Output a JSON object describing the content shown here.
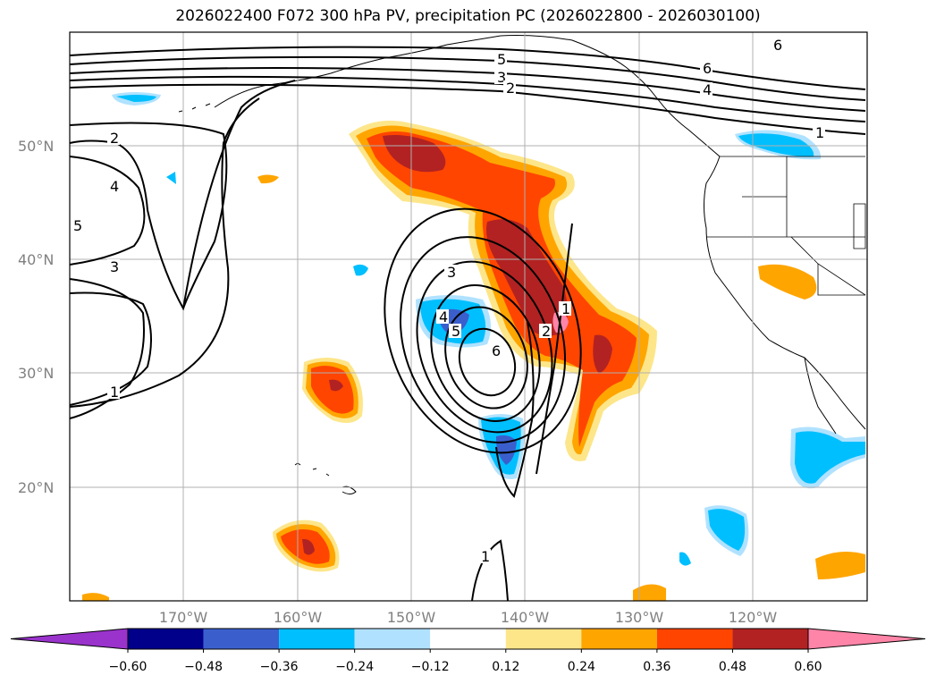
{
  "title": "2026022400 F072 300 hPa PV, precipitation PC (2026022800 - 2026030100)",
  "map": {
    "lat_labels": [
      "50°N",
      "40°N",
      "30°N",
      "20°N"
    ],
    "lon_labels": [
      "170°W",
      "160°W",
      "150°W",
      "140°W",
      "130°W",
      "120°W"
    ],
    "contour_labels": [
      "1",
      "2",
      "3",
      "4",
      "5",
      "6"
    ]
  },
  "colorbar": {
    "ticks": [
      "−0.60",
      "−0.48",
      "−0.36",
      "−0.24",
      "−0.12",
      "0.12",
      "0.24",
      "0.36",
      "0.48",
      "0.60"
    ],
    "colors": [
      "#9a33cc",
      "#00008b",
      "#3a5fcd",
      "#00bfff",
      "#b0e2ff",
      "#ffffff",
      "#fde68a",
      "#ffa500",
      "#ff4500",
      "#b22222",
      "#ff85a8"
    ]
  }
}
